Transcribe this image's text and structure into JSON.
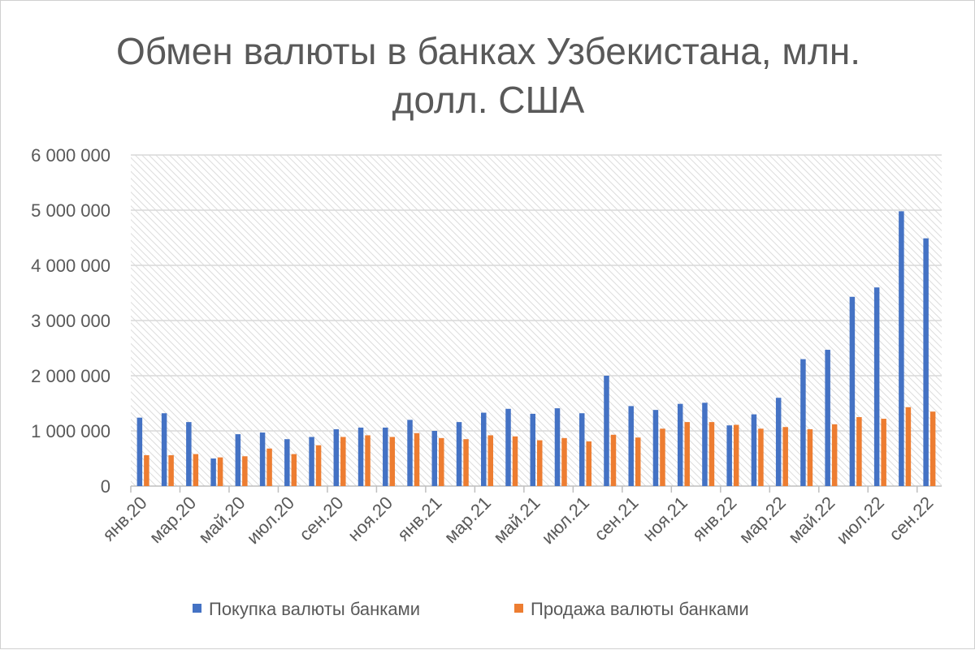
{
  "chart_data": {
    "type": "bar",
    "title": "Обмен валюты в банках Узбекистана, млн. долл. США",
    "title_lines": [
      "Обмен валюты в банках Узбекистана, млн.",
      "долл. США"
    ],
    "categories": [
      "янв.20",
      "фев.20",
      "мар.20",
      "апр.20",
      "май.20",
      "июн.20",
      "июл.20",
      "авг.20",
      "сен.20",
      "окт.20",
      "ноя.20",
      "дек.20",
      "янв.21",
      "фев.21",
      "мар.21",
      "апр.21",
      "май.21",
      "июн.21",
      "июл.21",
      "авг.21",
      "сен.21",
      "окт.21",
      "ноя.21",
      "дек.21",
      "янв.22",
      "фев.22",
      "мар.22",
      "апр.22",
      "май.22",
      "июн.22",
      "июл.22",
      "авг.22",
      "сен.22"
    ],
    "x_tick_labels": [
      "янв.20",
      "мар.20",
      "май.20",
      "июл.20",
      "сен.20",
      "ноя.20",
      "янв.21",
      "мар.21",
      "май.21",
      "июл.21",
      "сен.21",
      "ноя.21",
      "янв.22",
      "мар.22",
      "май.22",
      "июл.22",
      "сен.22"
    ],
    "series": [
      {
        "name": "Покупка валюты банками",
        "color": "#4472C4",
        "values": [
          1240000,
          1320000,
          1160000,
          500000,
          940000,
          970000,
          850000,
          890000,
          1030000,
          1060000,
          1060000,
          1200000,
          1000000,
          1160000,
          1330000,
          1400000,
          1310000,
          1410000,
          1320000,
          2000000,
          1450000,
          1380000,
          1490000,
          1510000,
          1100000,
          1300000,
          1600000,
          2300000,
          2470000,
          3430000,
          3600000,
          4980000,
          4490000
        ]
      },
      {
        "name": "Продажа валюты банками",
        "color": "#ED7D31",
        "values": [
          560000,
          560000,
          580000,
          520000,
          540000,
          680000,
          580000,
          740000,
          890000,
          920000,
          890000,
          960000,
          870000,
          850000,
          920000,
          900000,
          830000,
          870000,
          810000,
          930000,
          880000,
          1040000,
          1160000,
          1160000,
          1110000,
          1040000,
          1070000,
          1030000,
          1120000,
          1250000,
          1220000,
          1430000,
          1350000
        ]
      }
    ],
    "y_tick_labels": [
      "0",
      "1 000 000",
      "2 000 000",
      "3 000 000",
      "4 000 000",
      "5 000 000",
      "6 000 000"
    ],
    "ylim": [
      0,
      6000000
    ],
    "y_step": 1000000,
    "grid": true,
    "legend_position": "bottom",
    "xlabel": "",
    "ylabel": ""
  }
}
